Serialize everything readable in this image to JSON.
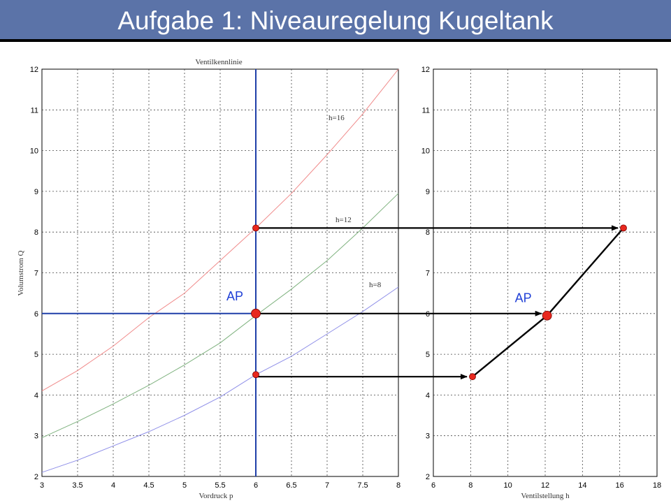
{
  "slide": {
    "title": "Aufgabe 1: Niveauregelung Kugeltank"
  },
  "chart_data": [
    {
      "type": "line",
      "title": "Ventilkennlinie",
      "xlabel": "Vordruck p",
      "ylabel": "Volumstrom Q",
      "xlim": [
        3,
        8
      ],
      "ylim": [
        2,
        12
      ],
      "xticks": [
        "3",
        "3.5",
        "4",
        "4.5",
        "5",
        "5.5",
        "6",
        "6.5",
        "7",
        "7.5",
        "8"
      ],
      "yticks": [
        "2",
        "3",
        "4",
        "5",
        "6",
        "7",
        "8",
        "9",
        "10",
        "11",
        "12"
      ],
      "grid": true,
      "series": [
        {
          "name": "h=16",
          "color": "#f08a8a",
          "x": [
            3,
            3.5,
            4,
            4.5,
            5,
            5.5,
            6,
            6.5,
            7,
            7.5,
            8
          ],
          "y": [
            4.1,
            4.6,
            5.2,
            5.9,
            6.5,
            7.3,
            8.1,
            8.95,
            9.9,
            10.9,
            12.0
          ]
        },
        {
          "name": "h=12",
          "color": "#7fb27f",
          "x": [
            3,
            3.5,
            4,
            4.5,
            5,
            5.5,
            6,
            6.5,
            7,
            7.5,
            8
          ],
          "y": [
            2.95,
            3.35,
            3.78,
            4.24,
            4.74,
            5.28,
            5.95,
            6.6,
            7.3,
            8.1,
            8.95
          ]
        },
        {
          "name": "h=8",
          "color": "#8f8fe8",
          "x": [
            3,
            3.5,
            4,
            4.5,
            5,
            5.5,
            6,
            6.5,
            7,
            7.5,
            8
          ],
          "y": [
            2.1,
            2.4,
            2.75,
            3.1,
            3.5,
            3.95,
            4.5,
            4.95,
            5.5,
            6.05,
            6.65
          ]
        }
      ],
      "reference_lines": {
        "x": 6,
        "y": 6,
        "color": "#1f3fa8"
      },
      "points": [
        {
          "x": 6,
          "y": 8.1
        },
        {
          "x": 6,
          "y": 6,
          "label": "AP"
        },
        {
          "x": 6,
          "y": 4.5
        }
      ]
    },
    {
      "type": "line",
      "xlabel": "Ventilstellung h",
      "ylabel": "",
      "xlim": [
        6,
        18
      ],
      "ylim": [
        2,
        12
      ],
      "xticks": [
        "6",
        "8",
        "10",
        "12",
        "14",
        "16",
        "18"
      ],
      "yticks": [
        "2",
        "3",
        "4",
        "5",
        "6",
        "7",
        "8",
        "9",
        "10",
        "11",
        "12"
      ],
      "grid": true,
      "series": [
        {
          "color": "#000000",
          "x": [
            8.1,
            12.1,
            16.2
          ],
          "y": [
            4.45,
            5.95,
            8.1
          ]
        }
      ],
      "points": [
        {
          "x": 8.1,
          "y": 4.45
        },
        {
          "x": 12.1,
          "y": 5.95,
          "label": "AP"
        },
        {
          "x": 16.2,
          "y": 8.1
        }
      ]
    }
  ],
  "arrows": [
    {
      "y": 8.1,
      "from_h": 6,
      "to_h": 16.2
    },
    {
      "y": 6,
      "from_h": 6,
      "to_h": 12.1
    },
    {
      "y": 4.45,
      "from_h": 6,
      "to_h": 8.1
    }
  ],
  "colors": {
    "point": "#e8281e",
    "arrow": "#000000",
    "reference": "#1f3fa8",
    "title_bar": "#5b73a8"
  }
}
